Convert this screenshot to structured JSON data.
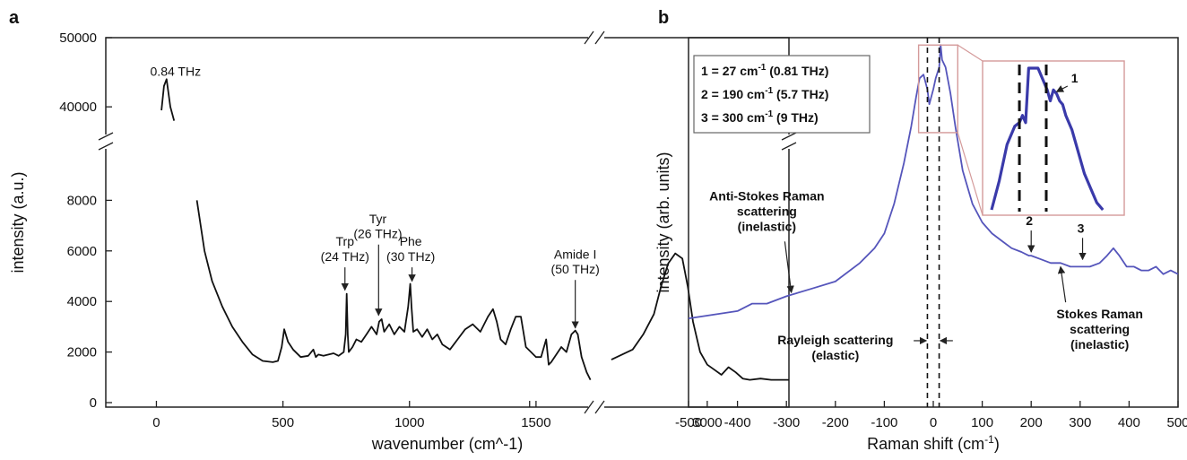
{
  "chart_data": [
    {
      "panel": "a",
      "type": "line",
      "xlabel": "wavenumber (cm^-1)",
      "ylabel": "intensity (a.u.)",
      "x_broken_axis": [
        1720,
        2700
      ],
      "y_broken_axis": [
        9500,
        36000
      ],
      "xlim": [
        -200,
        3230
      ],
      "ylim": [
        0,
        50000
      ],
      "grid": false,
      "xticks": [
        0,
        500,
        1000,
        1500,
        2500,
        3000
      ],
      "xtick_labels": [
        "0",
        "500",
        "1000",
        "1500",
        "",
        "3000"
      ],
      "yticks": [
        0,
        2000,
        4000,
        6000,
        8000,
        40000,
        50000
      ],
      "ytick_labels": [
        "0",
        "2000",
        "4000",
        "6000",
        "8000",
        "40000",
        "50000"
      ],
      "segments": [
        {
          "x": [
            20,
            30,
            40,
            55,
            70
          ],
          "y": [
            39500,
            43000,
            44000,
            40000,
            38000
          ]
        },
        {
          "x": [
            160,
            190,
            220,
            260,
            300,
            340,
            380,
            420,
            460,
            480,
            495,
            505,
            520,
            540,
            570,
            600,
            620,
            630,
            640,
            660,
            680,
            700,
            720,
            740,
            748,
            752,
            756,
            760,
            775,
            790,
            810,
            830,
            850,
            870,
            880,
            890,
            900,
            920,
            940,
            960,
            980,
            995,
            1003,
            1008,
            1015,
            1030,
            1050,
            1070,
            1090,
            1110,
            1130,
            1160,
            1190,
            1220,
            1250,
            1280,
            1310,
            1330,
            1345,
            1360,
            1380,
            1400,
            1420,
            1440,
            1450,
            1460,
            1480,
            1500,
            1520,
            1540,
            1550,
            1560,
            1580,
            1600,
            1620,
            1640,
            1655,
            1665,
            1680,
            1700,
            1715
          ],
          "y": [
            8000,
            6000,
            4800,
            3800,
            3000,
            2400,
            1900,
            1650,
            1600,
            1650,
            2200,
            2900,
            2400,
            2100,
            1800,
            1850,
            2100,
            1800,
            1900,
            1850,
            1900,
            1950,
            1850,
            2000,
            2700,
            4300,
            2700,
            2000,
            2200,
            2500,
            2400,
            2700,
            3000,
            2700,
            3200,
            3300,
            2800,
            3100,
            2700,
            3000,
            2800,
            3800,
            4700,
            3800,
            2800,
            2900,
            2600,
            2900,
            2500,
            2700,
            2300,
            2100,
            2500,
            2900,
            3100,
            2800,
            3400,
            3700,
            3200,
            2500,
            2300,
            2900,
            3400,
            3400,
            2800,
            2200,
            2000,
            1800,
            1800,
            2500,
            1500,
            1600,
            1900,
            2200,
            2000,
            2700,
            2850,
            2700,
            1800,
            1200,
            900
          ]
        },
        {
          "x": [
            2730,
            2760,
            2790,
            2820,
            2850,
            2870,
            2890,
            2910,
            2930,
            2945,
            2960,
            2980,
            3000,
            3020,
            3040,
            3060,
            3080,
            3100,
            3120,
            3150,
            3180,
            3230
          ],
          "y": [
            1700,
            1900,
            2100,
            2700,
            3500,
            4600,
            5500,
            5900,
            5700,
            4600,
            3200,
            2000,
            1500,
            1300,
            1100,
            1400,
            1200,
            950,
            900,
            950,
            900,
            900
          ]
        }
      ],
      "annotations": [
        {
          "text": "0.84 THz",
          "x": 25,
          "y": 44500
        },
        {
          "text": "Tyr",
          "x": 875,
          "y": 7100
        },
        {
          "text": "(26 THz)",
          "x": 875,
          "y": 6500
        },
        {
          "text": "Trp",
          "x": 745,
          "y": 6200
        },
        {
          "text": "(24 THz)",
          "x": 745,
          "y": 5600
        },
        {
          "text": "Phe",
          "x": 1005,
          "y": 6200
        },
        {
          "text": "(30 THz)",
          "x": 1005,
          "y": 5600
        },
        {
          "text": "Amide I",
          "x": 1655,
          "y": 5700
        },
        {
          "text": "(50 THz)",
          "x": 1655,
          "y": 5100
        }
      ],
      "arrows": [
        {
          "x": 745,
          "y_from": 5350,
          "y_to": 4450
        },
        {
          "x": 878,
          "y_from": 6250,
          "y_to": 3450
        },
        {
          "x": 1010,
          "y_from": 5350,
          "y_to": 4800
        },
        {
          "x": 1655,
          "y_from": 4850,
          "y_to": 2950
        }
      ]
    },
    {
      "panel": "b",
      "type": "line",
      "xlabel": "Raman shift (cm",
      "xlabel_sup": "-1",
      "xlabel_tail": ")",
      "ylabel": "intensity (arb. units)",
      "xlim": [
        -500,
        500
      ],
      "ylim": [
        0,
        1
      ],
      "yticks_labels": false,
      "grid": false,
      "color": "#5555bb",
      "xticks": [
        -500,
        -400,
        -300,
        -200,
        -100,
        0,
        100,
        200,
        300,
        400,
        500
      ],
      "xtick_labels": [
        "-500",
        "-400",
        "-300",
        "-200",
        "-100",
        "0",
        "100",
        "200",
        "300",
        "400",
        "500"
      ],
      "series": [
        {
          "x": [
            -500,
            -450,
            -400,
            -370,
            -340,
            -300,
            -250,
            -200,
            -150,
            -120,
            -100,
            -80,
            -60,
            -45,
            -35,
            -28,
            -20,
            -12,
            -8,
            0,
            5,
            12,
            15,
            18,
            25,
            35,
            45,
            60,
            80,
            100,
            120,
            140,
            160,
            180,
            195,
            200,
            220,
            240,
            260,
            280,
            300,
            320,
            340,
            355,
            368,
            380,
            395,
            410,
            425,
            440,
            455,
            470,
            485,
            500
          ],
          "y": [
            0.24,
            0.25,
            0.26,
            0.28,
            0.28,
            0.3,
            0.32,
            0.34,
            0.39,
            0.43,
            0.47,
            0.55,
            0.66,
            0.76,
            0.84,
            0.89,
            0.9,
            0.86,
            0.82,
            0.86,
            0.89,
            0.92,
            0.98,
            0.94,
            0.92,
            0.85,
            0.76,
            0.64,
            0.55,
            0.5,
            0.47,
            0.45,
            0.43,
            0.42,
            0.41,
            0.41,
            0.4,
            0.39,
            0.39,
            0.38,
            0.38,
            0.38,
            0.39,
            0.41,
            0.43,
            0.41,
            0.38,
            0.38,
            0.37,
            0.37,
            0.38,
            0.36,
            0.37,
            0.36
          ]
        }
      ],
      "dashed_lines_x": [
        -12,
        12
      ],
      "legend_box": [
        {
          "prefix": "1 = 27 cm",
          "sup": "-1",
          "suffix": " (0.81 THz)"
        },
        {
          "prefix": "2 = 190 cm",
          "sup": "-1",
          "suffix": " (5.7 THz)"
        },
        {
          "prefix": "3 = 300 cm",
          "sup": "-1",
          "suffix": " (9 THz)"
        }
      ],
      "zoom_inset": {
        "x_range": [
          -30,
          50
        ],
        "y_range": [
          0.84,
          0.98
        ],
        "marker_label": "1"
      },
      "peak_markers": [
        {
          "label": "2",
          "x": 200,
          "y": 0.41
        },
        {
          "label": "3",
          "x": 305,
          "y": 0.39
        }
      ],
      "annotations": [
        {
          "lines": [
            "Anti-Stokes Raman",
            "scattering",
            "(inelastic)"
          ],
          "x": -340,
          "y": 0.56,
          "arrow_to": [
            -290,
            0.31
          ]
        },
        {
          "lines": [
            "Rayleigh scattering",
            "(elastic)"
          ],
          "x": -200,
          "y": 0.17
        },
        {
          "lines": [
            "Stokes Raman",
            "scattering",
            "(inelastic)"
          ],
          "x": 340,
          "y": 0.24,
          "arrow_from": [
            260,
            0.38
          ]
        }
      ]
    }
  ],
  "panels": {
    "a": "a",
    "b": "b"
  }
}
